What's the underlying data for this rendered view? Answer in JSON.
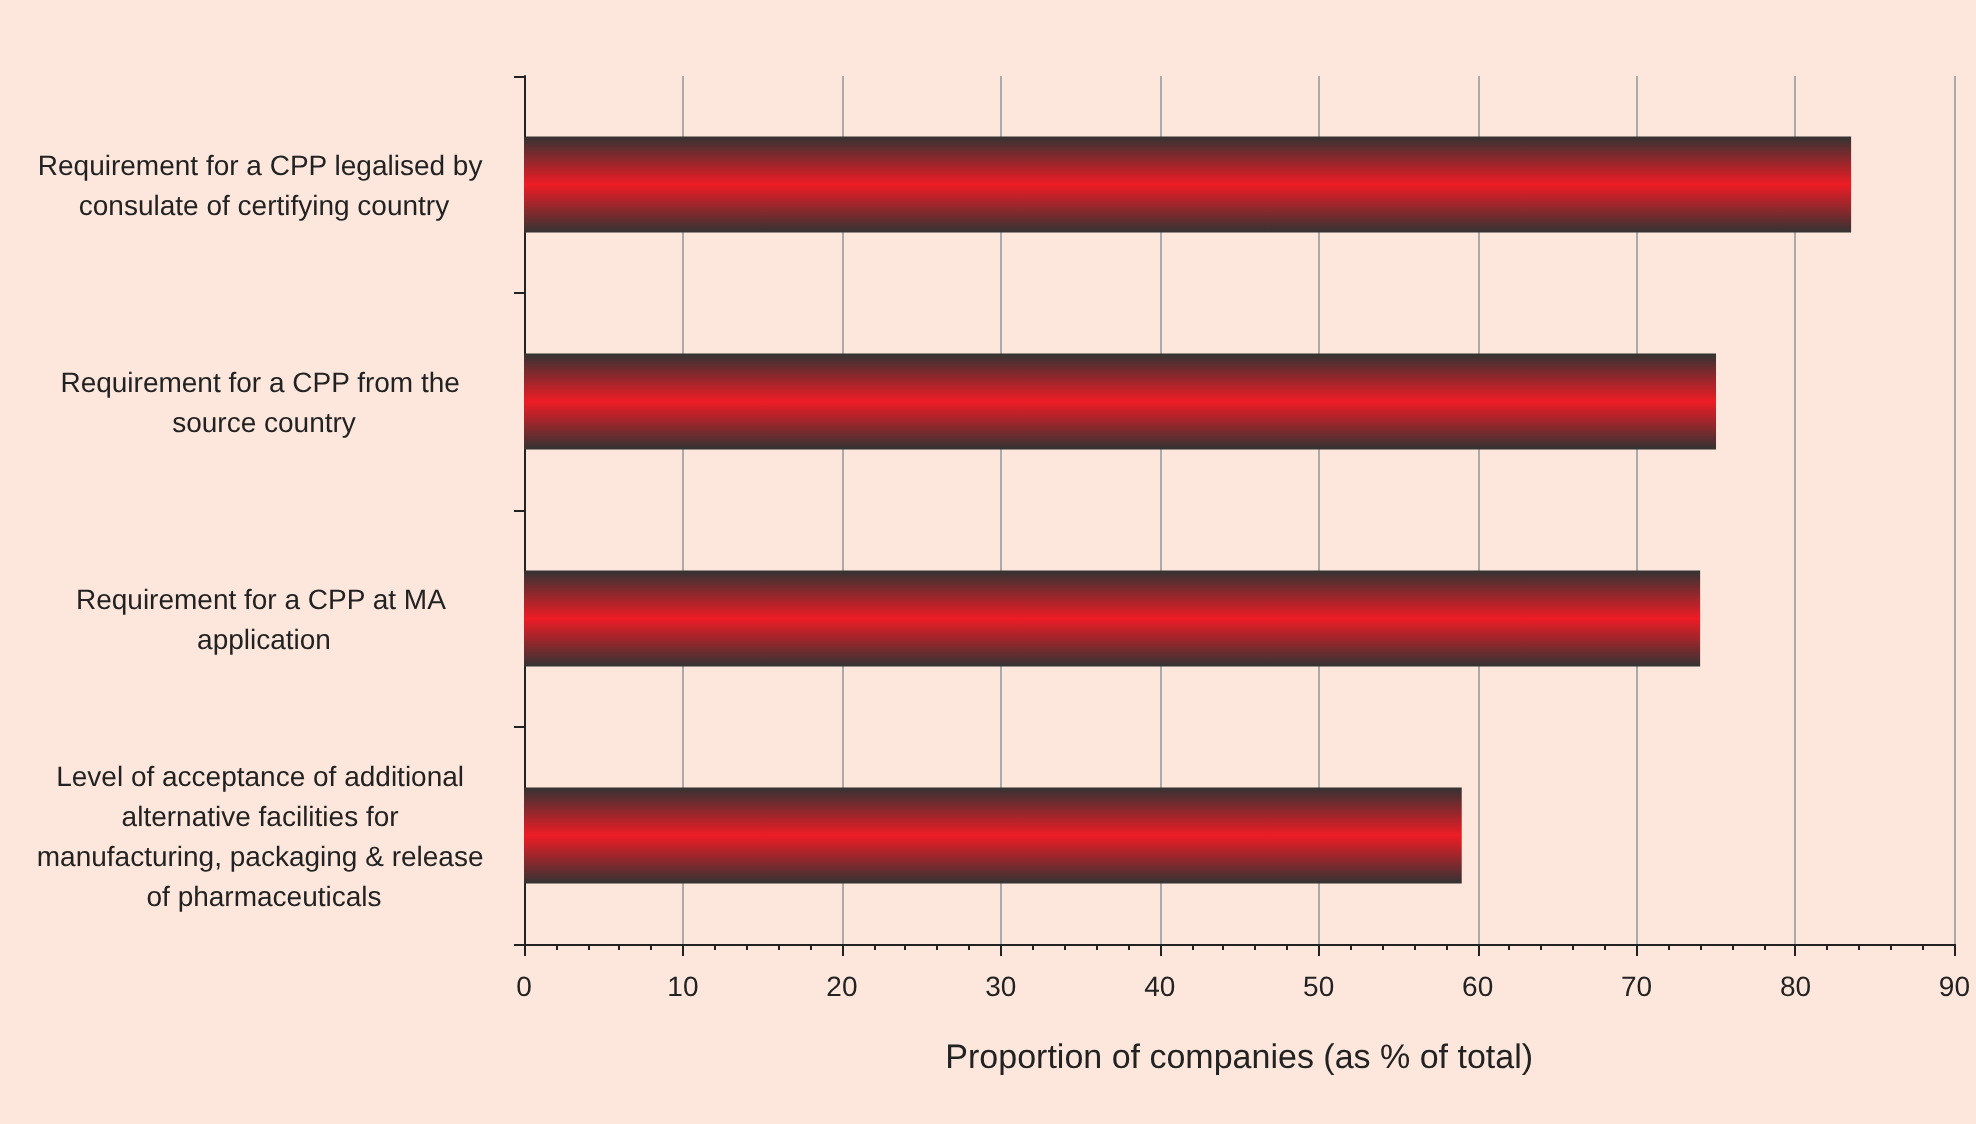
{
  "chart_data": {
    "type": "bar",
    "orientation": "horizontal",
    "xlabel": "Proportion of companies (as % of total)",
    "categories": [
      "Requirement for a CPP legalised by consulate of certifying country",
      "Requirement for a CPP from the source country",
      "Requirement for a CPP at MA application",
      "Level of acceptance of additional alternative facilities for manufacturing, packaging & release of pharmaceuticals"
    ],
    "values": [
      83.5,
      75,
      74,
      59
    ],
    "color": "#ee1c25",
    "xlim": [
      0,
      90
    ],
    "xticks": [
      0,
      10,
      20,
      30,
      40,
      50,
      60,
      70,
      80,
      90
    ],
    "grid": "x"
  }
}
